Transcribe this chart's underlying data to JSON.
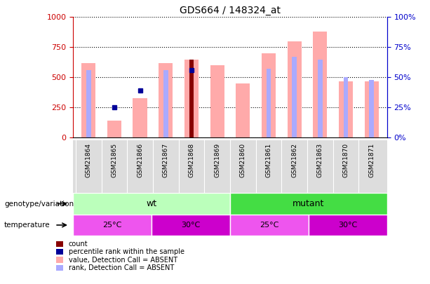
{
  "title": "GDS664 / 148324_at",
  "samples": [
    "GSM21864",
    "GSM21865",
    "GSM21866",
    "GSM21867",
    "GSM21868",
    "GSM21869",
    "GSM21860",
    "GSM21861",
    "GSM21862",
    "GSM21863",
    "GSM21870",
    "GSM21871"
  ],
  "value_absent": [
    620,
    140,
    330,
    620,
    650,
    600,
    450,
    700,
    800,
    880,
    465,
    465
  ],
  "rank_absent_pct": [
    56,
    null,
    null,
    56,
    56,
    null,
    null,
    57,
    67,
    64.5,
    50,
    48
  ],
  "count_val": [
    null,
    null,
    null,
    null,
    650,
    null,
    null,
    null,
    null,
    null,
    null,
    null
  ],
  "percentile_rank_pct": [
    null,
    25,
    39,
    null,
    56,
    null,
    null,
    null,
    null,
    null,
    null,
    null
  ],
  "ylim_left": [
    0,
    1000
  ],
  "ylim_right": [
    0,
    100
  ],
  "yticks_left": [
    0,
    250,
    500,
    750,
    1000
  ],
  "yticks_right": [
    0,
    25,
    50,
    75,
    100
  ],
  "left_axis_color": "#cc0000",
  "right_axis_color": "#0000cc",
  "color_value_absent": "#ffaaaa",
  "color_rank_absent": "#aaaaff",
  "color_count": "#880000",
  "color_percentile": "#000099",
  "wt_color": "#bbffbb",
  "mutant_color": "#44dd44",
  "temp25_color": "#ee55ee",
  "temp30_color": "#cc00cc",
  "bar_width": 0.55,
  "rank_bar_width": 0.18
}
